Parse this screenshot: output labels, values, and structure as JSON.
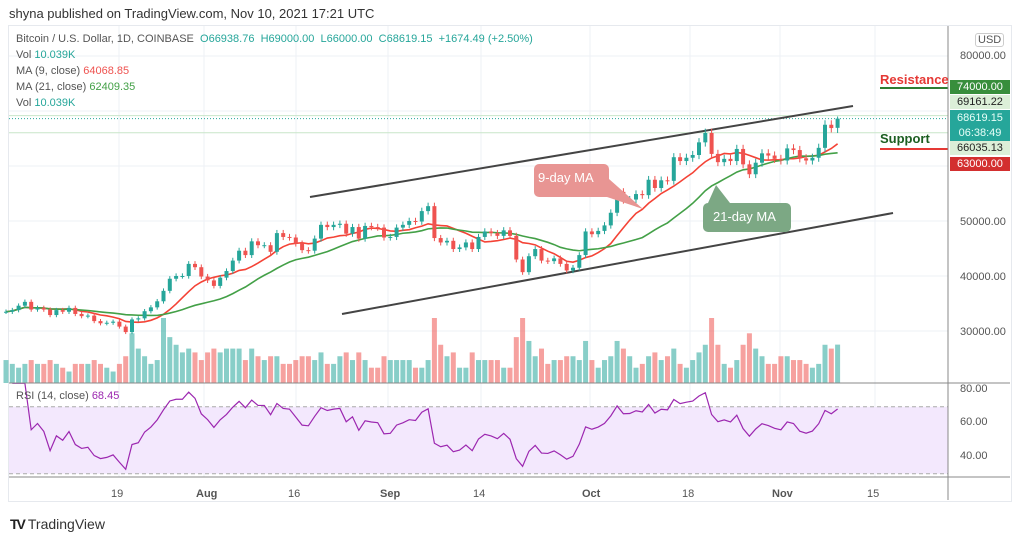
{
  "header": {
    "published": "shyna published on TradingView.com, Nov 10, 2021 17:21 UTC",
    "symbol": "Bitcoin / U.S. Dollar, 1D, COINBASE",
    "open": "O66938.76",
    "high": "H69000.00",
    "low": "L66000.00",
    "close": "C68619.15",
    "change": "+1674.49 (+2.50%)",
    "vol_label": "Vol",
    "vol_value": "10.039K",
    "ma9_label": "MA (9, close)",
    "ma9_value": "64068.85",
    "ma21_label": "MA (21, close)",
    "ma21_value": "62409.35",
    "vol2_label": "Vol",
    "vol2_value": "10.039K",
    "rsi_label": "RSI (14, close)",
    "rsi_value": "68.45"
  },
  "price_axis": {
    "currency": "USD",
    "ticks": [
      "80000.00",
      "50000.00",
      "40000.00",
      "30000.00"
    ],
    "resistance_tag": "74000.00",
    "high_tag": "69161.22",
    "last_price_tag": "68619.15",
    "countdown": "06:38:49",
    "low_tag": "66035.13",
    "support_tag": "63000.00"
  },
  "rsi_axis": {
    "ticks": [
      "80.00",
      "60.00",
      "40.00"
    ]
  },
  "time_axis": {
    "ticks": [
      "19",
      "Aug",
      "16",
      "Sep",
      "14",
      "Oct",
      "18",
      "Nov",
      "15"
    ]
  },
  "annotations": {
    "resistance": "Resistance",
    "support": "Support",
    "ma9_callout": "9-day MA",
    "ma21_callout": "21-day MA"
  },
  "branding": {
    "logo": "TradingView"
  },
  "colors": {
    "up": "#26a69a",
    "down": "#ef5350",
    "ma9": "#f44336",
    "ma21": "#43a047",
    "rsi": "#9c27b0",
    "resistance_tag": "#388e3c",
    "support_tag": "#d32f2f",
    "last_price": "#26a69a"
  },
  "chart_data": {
    "type": "candlestick",
    "start_date": "2021-07-01",
    "interval": "1D",
    "ylim": [
      28000,
      82000
    ],
    "resistance_level": 74000,
    "support_level": 63000,
    "indicators": [
      "MA 9 close",
      "MA 21 close",
      "Volume",
      "RSI 14 close"
    ],
    "last_bar": {
      "open": 66938.76,
      "high": 69000.0,
      "low": 66000.0,
      "close": 68619.15,
      "volume_k": 10.039
    },
    "close": [
      33500,
      33800,
      34600,
      35300,
      33900,
      34200,
      33900,
      32900,
      33800,
      33500,
      34200,
      33100,
      32700,
      32800,
      31800,
      31400,
      31500,
      31700,
      30800,
      29800,
      32100,
      32300,
      33600,
      34300,
      35400,
      37300,
      39500,
      40000,
      40000,
      42200,
      41600,
      39900,
      39200,
      38200,
      39700,
      40900,
      42800,
      44600,
      43800,
      46300,
      45600,
      45600,
      44400,
      47800,
      47100,
      47000,
      45900,
      44700,
      44600,
      46800,
      49300,
      48900,
      49300,
      49500,
      47700,
      48900,
      46800,
      49100,
      48900,
      48800,
      47000,
      47100,
      48800,
      49300,
      50000,
      49900,
      51800,
      52700,
      46900,
      46100,
      46400,
      44900,
      45200,
      46100,
      44900,
      47100,
      48100,
      47800,
      47300,
      48300,
      47300,
      43000,
      40700,
      43600,
      44900,
      42800,
      42700,
      43200,
      42200,
      41000,
      41500,
      43800,
      48100,
      47600,
      48200,
      49200,
      51500,
      55300,
      53800,
      53900,
      54900,
      54700,
      57500,
      56000,
      57400,
      57300,
      61600,
      60900,
      61500,
      62000,
      64300,
      66000,
      62200,
      60700,
      61300,
      60900,
      63100,
      60300,
      58500,
      60600,
      62300,
      61900,
      61300,
      61000,
      63200,
      62900,
      61400,
      61000,
      61500,
      63300,
      67500,
      66900,
      68619.15
    ],
    "volume_k": [
      6,
      5,
      4,
      5,
      6,
      5,
      5,
      6,
      5,
      4,
      3,
      5,
      5,
      5,
      6,
      5,
      4,
      3,
      5,
      7,
      13,
      9,
      7,
      5,
      6,
      17,
      12,
      10,
      8,
      9,
      8,
      6,
      8,
      9,
      8,
      9,
      9,
      9,
      6,
      9,
      7,
      6,
      7,
      7,
      5,
      5,
      6,
      7,
      7,
      6,
      8,
      5,
      5,
      7,
      8,
      6,
      8,
      6,
      4,
      4,
      7,
      6,
      6,
      6,
      6,
      4,
      4,
      6,
      17,
      10,
      7,
      8,
      4,
      4,
      8,
      6,
      6,
      6,
      6,
      4,
      4,
      12,
      17,
      11,
      7,
      9,
      5,
      6,
      6,
      7,
      7,
      6,
      11,
      6,
      4,
      6,
      7,
      11,
      9,
      7,
      4,
      5,
      7,
      8,
      6,
      7,
      9,
      5,
      4,
      6,
      8,
      10,
      17,
      10,
      5,
      4,
      6,
      10,
      13,
      9,
      7,
      5,
      5,
      7,
      7,
      6,
      6,
      5,
      4,
      5,
      10,
      9,
      10.039
    ],
    "rsi_levels": [
      70,
      30
    ],
    "rsi_ylim": [
      20,
      85
    ]
  }
}
